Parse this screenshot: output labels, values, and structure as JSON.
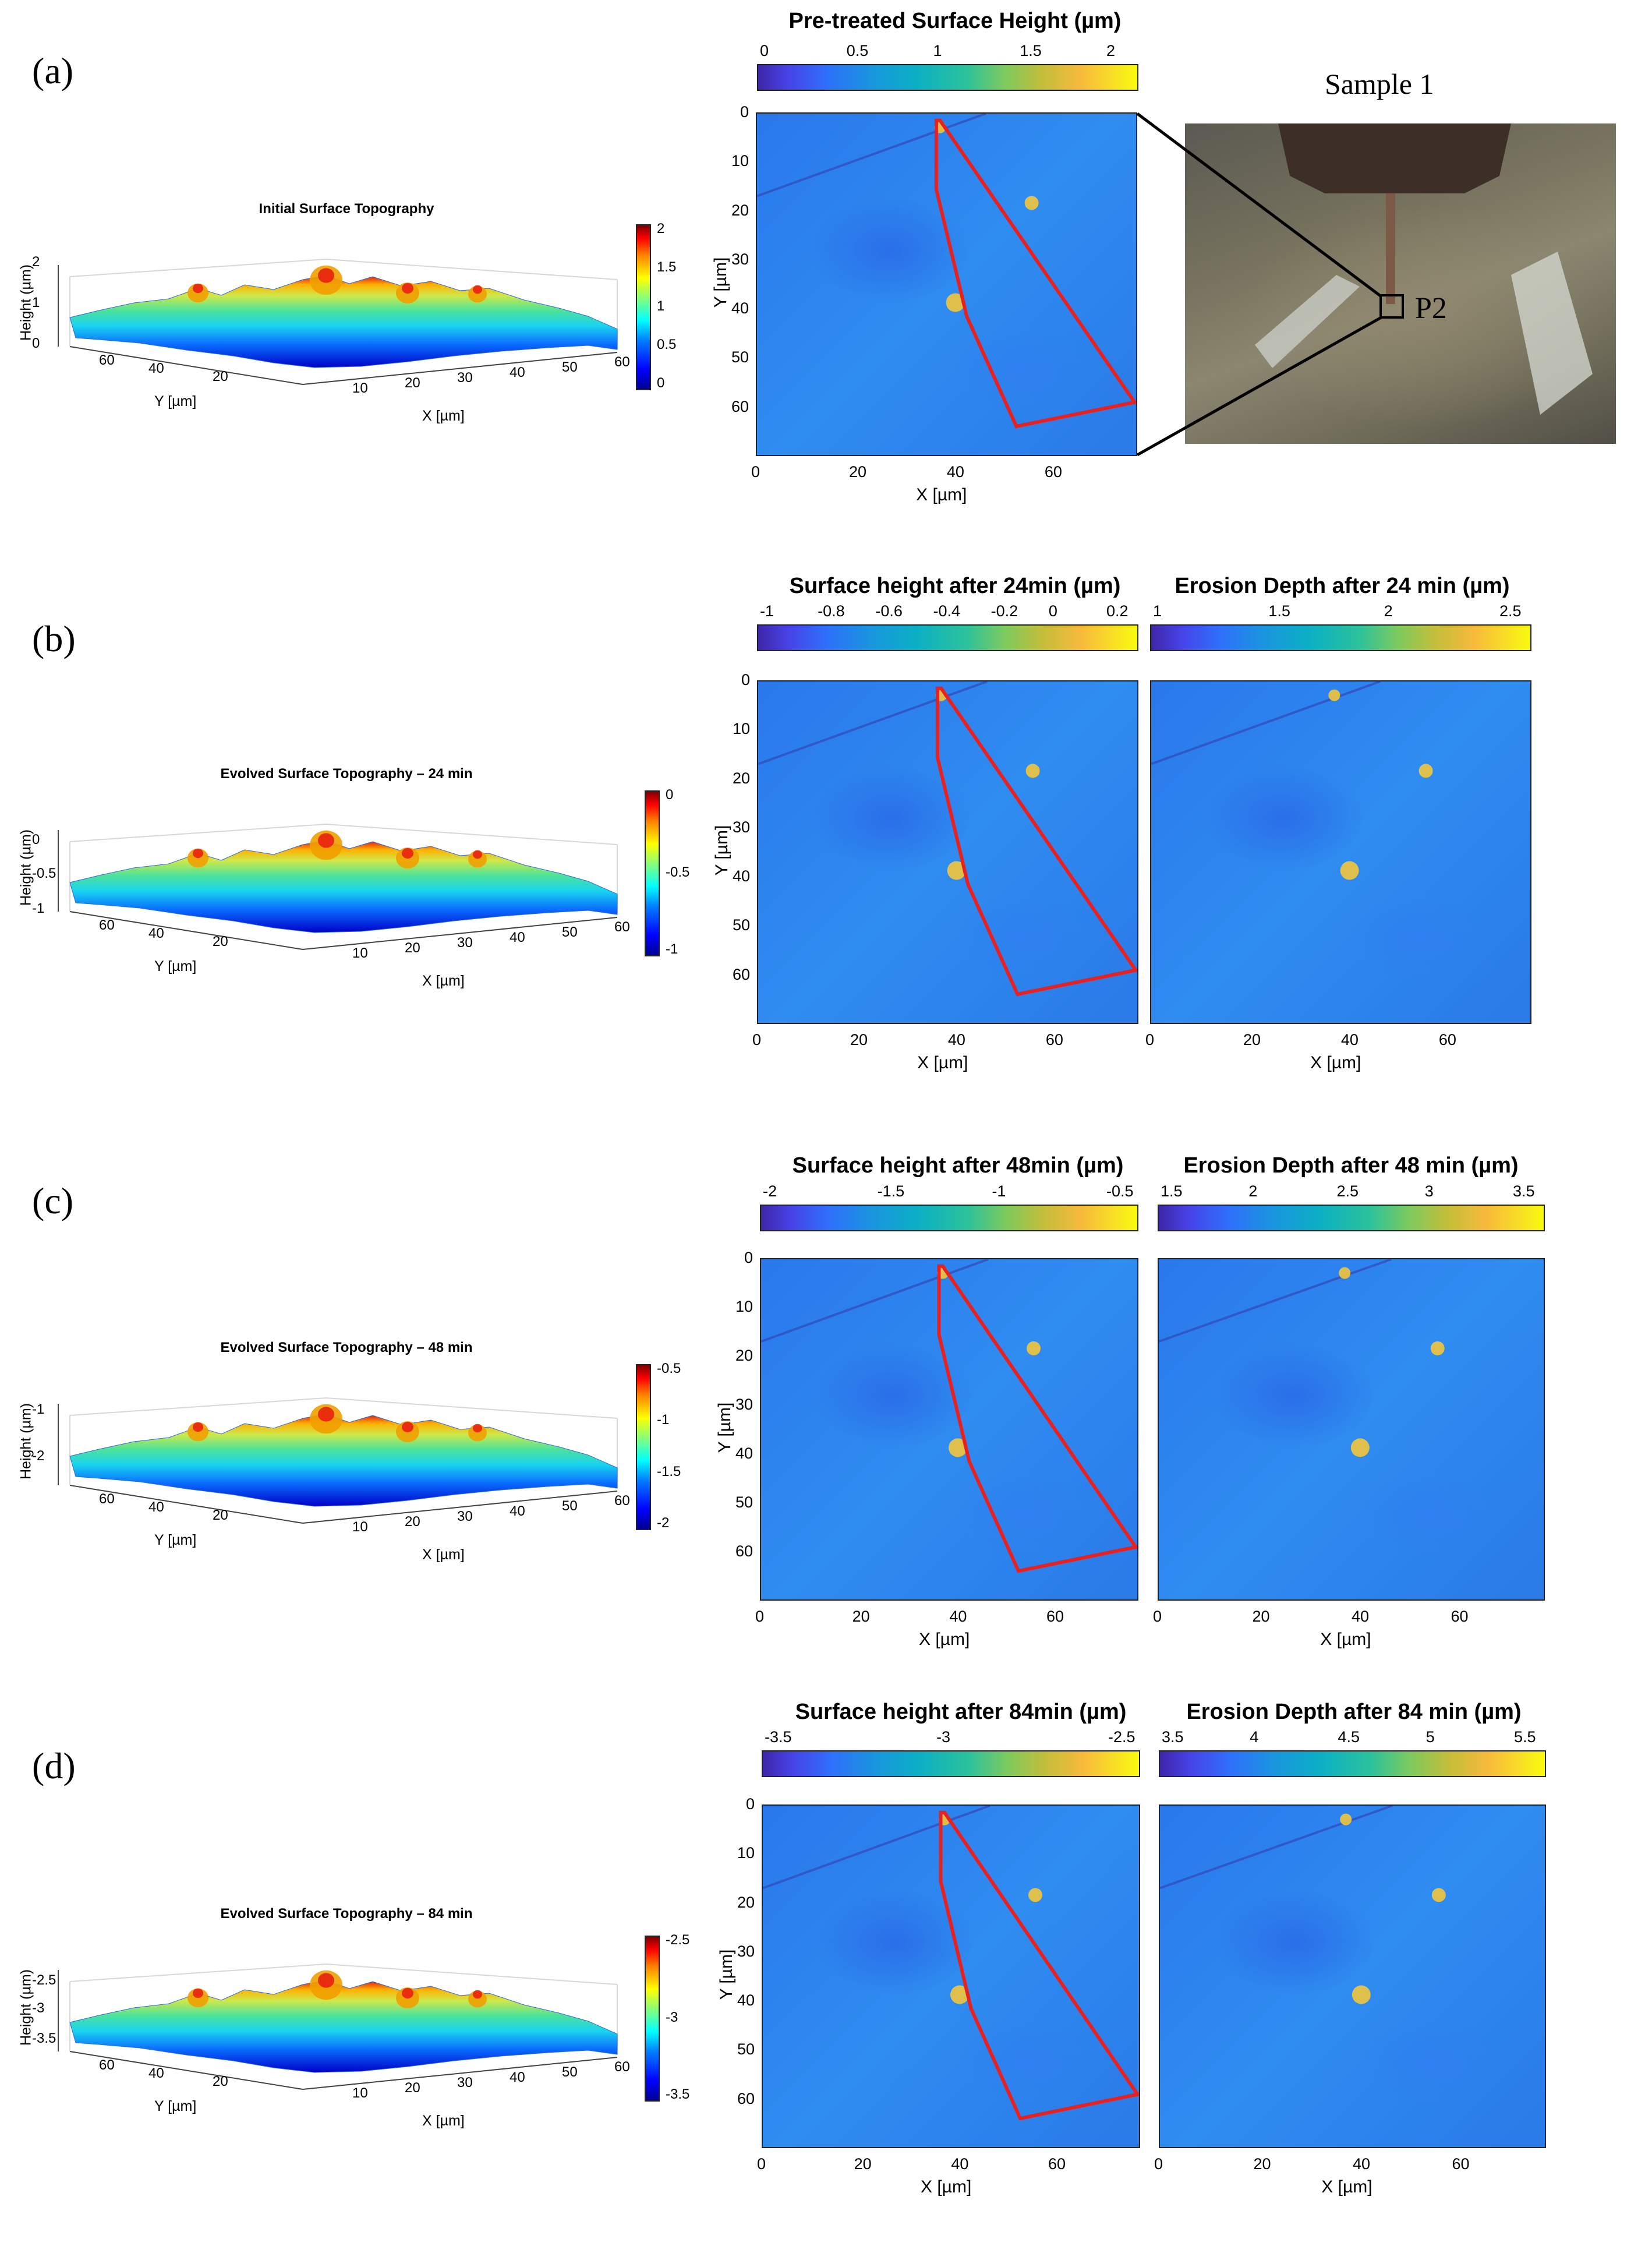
{
  "panel_labels": [
    "(a)",
    "(b)",
    "(c)",
    "(d)"
  ],
  "colors": {
    "roi": "#e82020",
    "jet_top": "#800000",
    "jet_bottom": "#00008f",
    "parula_low": "#3e26a8",
    "parula_high": "#f9fb0e"
  },
  "rows": [
    {
      "id": "a",
      "topo": {
        "title": "Initial Surface Topography",
        "zlabel": "Height (µm)",
        "yticks": [
          "60",
          "40",
          "20"
        ],
        "xticks": [
          "10",
          "20",
          "30",
          "40",
          "50",
          "60"
        ],
        "zticks": [
          "2",
          "1",
          "0"
        ],
        "cbar_ticks": [
          "2",
          "1.5",
          "1",
          "0.5",
          "0"
        ],
        "ylabel": "Y [µm]",
        "xlabel": "X [µm]"
      },
      "height_map": {
        "title": "Pre-treated Surface Height (µm)",
        "cbar_ticks": [
          "0",
          "0.5",
          "1",
          "1.5",
          "2"
        ],
        "xticks": [
          "0",
          "20",
          "40",
          "60"
        ],
        "yticks": [
          "0",
          "10",
          "20",
          "30",
          "40",
          "50",
          "60"
        ],
        "xlabel": "X [µm]",
        "ylabel": "Y [µm]"
      },
      "photo": {
        "title": "Sample 1",
        "marker_label": "P2"
      }
    },
    {
      "id": "b",
      "topo": {
        "title": "Evolved Surface Topography – 24 min",
        "zlabel": "Height (µm)",
        "yticks": [
          "60",
          "40",
          "20"
        ],
        "xticks": [
          "10",
          "20",
          "30",
          "40",
          "50",
          "60"
        ],
        "zticks": [
          "0",
          "-0.5",
          "-1"
        ],
        "cbar_ticks": [
          "0",
          "-0.5",
          "-1"
        ],
        "ylabel": "Y [µm]",
        "xlabel": "X [µm]"
      },
      "height_map": {
        "title": "Surface height after 24min (µm)",
        "cbar_ticks": [
          "-1",
          "-0.8",
          "-0.6",
          "-0.4",
          "-0.2",
          "0",
          "0.2"
        ],
        "xticks": [
          "0",
          "20",
          "40",
          "60"
        ],
        "yticks": [
          "0",
          "10",
          "20",
          "30",
          "40",
          "50",
          "60"
        ],
        "xlabel": "X [µm]",
        "ylabel": "Y [µm]"
      },
      "erosion_map": {
        "title": "Erosion Depth after 24 min (µm)",
        "cbar_ticks": [
          "1",
          "1.5",
          "2",
          "2.5"
        ],
        "xticks": [
          "0",
          "20",
          "40",
          "60"
        ],
        "xlabel": "X [µm]"
      }
    },
    {
      "id": "c",
      "topo": {
        "title": "Evolved Surface Topography – 48 min",
        "zlabel": "Height (µm)",
        "yticks": [
          "60",
          "40",
          "20"
        ],
        "xticks": [
          "10",
          "20",
          "30",
          "40",
          "50",
          "60"
        ],
        "zticks": [
          "-1",
          "-2"
        ],
        "cbar_ticks": [
          "-0.5",
          "-1",
          "-1.5",
          "-2"
        ],
        "ylabel": "Y [µm]",
        "xlabel": "X [µm]"
      },
      "height_map": {
        "title": "Surface height after 48min (µm)",
        "cbar_ticks": [
          "-2",
          "-1.5",
          "-1",
          "-0.5"
        ],
        "xticks": [
          "0",
          "20",
          "40",
          "60"
        ],
        "yticks": [
          "0",
          "10",
          "20",
          "30",
          "40",
          "50",
          "60"
        ],
        "xlabel": "X [µm]",
        "ylabel": "Y [µm]"
      },
      "erosion_map": {
        "title": "Erosion Depth after 48 min (µm)",
        "cbar_ticks": [
          "1.5",
          "2",
          "2.5",
          "3",
          "3.5"
        ],
        "xticks": [
          "0",
          "20",
          "40",
          "60"
        ],
        "xlabel": "X [µm]"
      }
    },
    {
      "id": "d",
      "topo": {
        "title": "Evolved Surface Topography – 84 min",
        "zlabel": "Height (µm)",
        "yticks": [
          "60",
          "40",
          "20"
        ],
        "xticks": [
          "10",
          "20",
          "30",
          "40",
          "50",
          "60"
        ],
        "zticks": [
          "-2.5",
          "-3",
          "-3.5"
        ],
        "cbar_ticks": [
          "-2.5",
          "-3",
          "-3.5"
        ],
        "ylabel": "Y [µm]",
        "xlabel": "X [µm]"
      },
      "height_map": {
        "title": "Surface height after 84min (µm)",
        "cbar_ticks": [
          "-3.5",
          "-3",
          "-2.5"
        ],
        "xticks": [
          "0",
          "20",
          "40",
          "60"
        ],
        "yticks": [
          "0",
          "10",
          "20",
          "30",
          "40",
          "50",
          "60"
        ],
        "xlabel": "X [µm]",
        "ylabel": "Y [µm]"
      },
      "erosion_map": {
        "title": "Erosion Depth after 84 min (µm)",
        "cbar_ticks": [
          "3.5",
          "4",
          "4.5",
          "5",
          "5.5"
        ],
        "xticks": [
          "0",
          "20",
          "40",
          "60"
        ],
        "xlabel": "X [µm]"
      }
    }
  ]
}
